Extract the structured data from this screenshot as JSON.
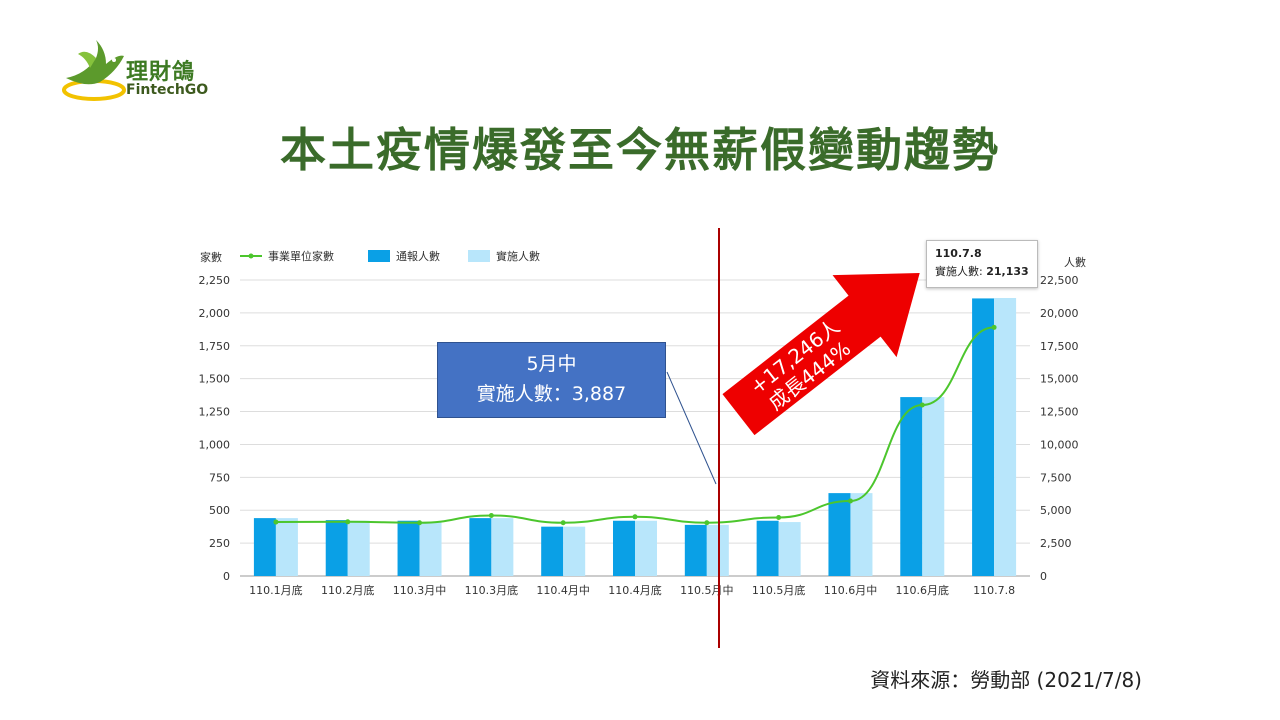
{
  "logo": {
    "name_cn": "理財鴿",
    "name_en": "FintechGO"
  },
  "title": "本土疫情爆發至今無薪假變動趨勢",
  "annotation": {
    "line1": "5月中",
    "line2": "實施人數：3,887",
    "arrow_line1": "+17,246人",
    "arrow_line2": "成長444%"
  },
  "tooltip": {
    "date": "110.7.8",
    "label": "實施人數:",
    "value": "21,133"
  },
  "source": "資料來源：勞動部 (2021/7/8)",
  "colors": {
    "line": "#4cc62d",
    "bar_notified": "#0aa0e6",
    "bar_implemented": "#b8e6fb",
    "arrow": "#ee0000",
    "divider": "#aa0000",
    "title": "#3a6b2a",
    "callout": "#4472c4"
  },
  "chart_data": {
    "type": "bar",
    "categories": [
      "110.1月底",
      "110.2月底",
      "110.3月中",
      "110.3月底",
      "110.4月中",
      "110.4月底",
      "110.5月中",
      "110.5月底",
      "110.6月中",
      "110.6月底",
      "110.7.8"
    ],
    "series": [
      {
        "name": "事業單位家數",
        "type": "line",
        "axis": "left",
        "values": [
          410,
          412,
          405,
          460,
          405,
          450,
          405,
          445,
          570,
          1300,
          1890
        ]
      },
      {
        "name": "通報人數",
        "type": "bar",
        "axis": "right",
        "values": [
          4400,
          4250,
          4200,
          4400,
          3750,
          4200,
          3887,
          4200,
          6300,
          13600,
          21100
        ]
      },
      {
        "name": "實施人數",
        "type": "bar",
        "axis": "right",
        "values": [
          4400,
          4200,
          4100,
          4400,
          3750,
          4200,
          3887,
          4100,
          6300,
          13600,
          21133
        ]
      }
    ],
    "ylabel_left": "家數",
    "ylabel_right": "人數",
    "ylim_left": [
      0,
      2250
    ],
    "ylim_right": [
      0,
      22500
    ],
    "yticks_left": [
      "0",
      "250",
      "500",
      "750",
      "1,000",
      "1,250",
      "1,500",
      "1,750",
      "2,000",
      "2,250"
    ],
    "yticks_right": [
      "0",
      "2,500",
      "5,000",
      "7,500",
      "10,000",
      "12,500",
      "15,000",
      "17,500",
      "20,000",
      "22,500"
    ],
    "grid": true,
    "legend_position": "top-left"
  }
}
